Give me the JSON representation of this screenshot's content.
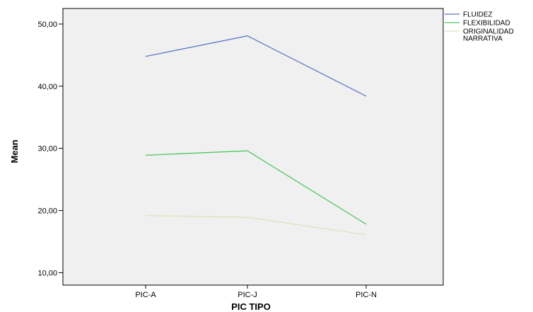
{
  "chart_data": {
    "type": "line",
    "title": "",
    "xlabel": "PIC TIPO",
    "ylabel": "Mean",
    "categories": [
      "PIC-A",
      "PIC-J",
      "PIC-N"
    ],
    "ylim": [
      8,
      52.5
    ],
    "yticks": [
      "10,00",
      "20,00",
      "30,00",
      "40,00",
      "50,00"
    ],
    "ytick_values": [
      10,
      20,
      30,
      40,
      50
    ],
    "grid": false,
    "legend_position": "top-right",
    "plot_background": "#f0f0f0",
    "series": [
      {
        "name": "FLUIDEZ",
        "color": "#5b7bc5",
        "values": [
          44.8,
          48.1,
          38.4
        ]
      },
      {
        "name": "FLEXIBILIDAD",
        "color": "#4fc864",
        "values": [
          28.9,
          29.6,
          17.8
        ]
      },
      {
        "name": "ORIGINALIDAD NARRATIVA",
        "label_lines": [
          "ORIGINALIDAD",
          "NARRATIVA"
        ],
        "color": "#e3dfb8",
        "values": [
          19.2,
          18.9,
          16.1
        ]
      }
    ]
  }
}
